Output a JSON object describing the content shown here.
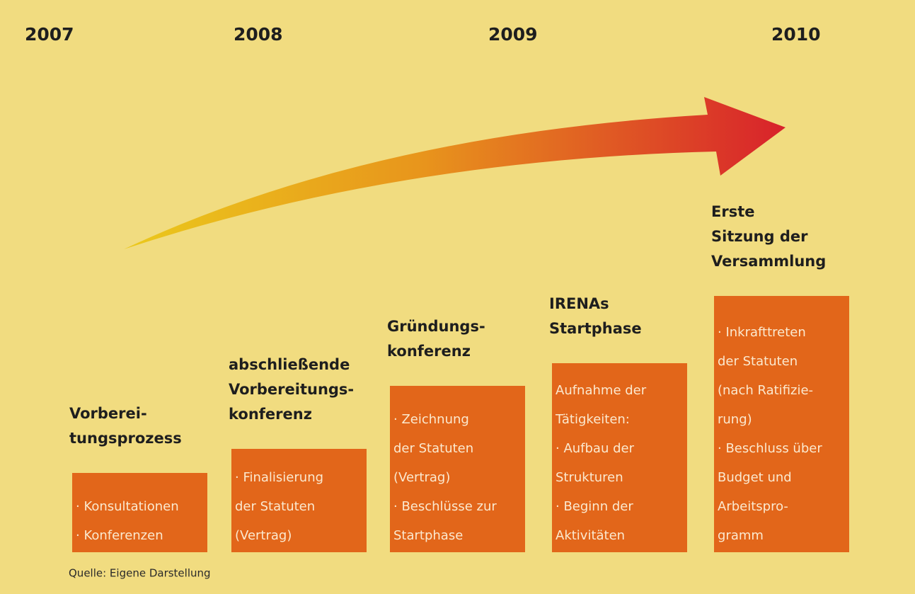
{
  "years": [
    "2007",
    "2008",
    "2009",
    "2010"
  ],
  "stages": [
    {
      "title": [
        "Vorberei-",
        "tungsprozess"
      ],
      "items": [
        "· Konsultationen",
        "· Konferenzen"
      ]
    },
    {
      "title": [
        "abschließende",
        "Vorbereitungs-",
        "konferenz"
      ],
      "items": [
        "· Finalisierung",
        "der Statuten",
        "(Vertrag)"
      ]
    },
    {
      "title": [
        "Gründungs-",
        "konferenz"
      ],
      "items": [
        "· Zeichnung",
        "der Statuten",
        "(Vertrag)",
        "· Beschlüsse zur",
        "Startphase"
      ]
    },
    {
      "title": [
        "IRENAs",
        "Startphase"
      ],
      "items": [
        "Aufnahme der",
        "Tätigkeiten:",
        "· Aufbau der",
        "Strukturen",
        "· Beginn der",
        "Aktivitäten"
      ]
    },
    {
      "title": [
        "Erste",
        "Sitzung der",
        "Versammlung"
      ],
      "items": [
        "· Inkrafttreten",
        "der Statuten",
        "(nach Ratifizie-",
        "rung)",
        "· Beschluss über",
        "Budget und",
        "Arbeitspro-",
        "gramm"
      ]
    }
  ],
  "source": "Quelle: Eigene Darstellung"
}
